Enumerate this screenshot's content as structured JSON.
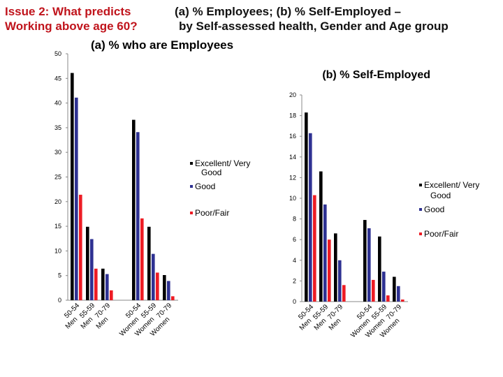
{
  "header": {
    "left_line1": "Issue 2: What predicts",
    "left_line2": "Working above age 60?",
    "right_line1": "(a) % Employees;   (b) % Self-Employed –",
    "right_line2": "by Self-assessed health,  Gender and Age group"
  },
  "colors": {
    "excellent": "#000000",
    "good": "#2e3192",
    "poor": "#ed1c24",
    "title_red": "#c0141c"
  },
  "chart_data": [
    {
      "type": "bar",
      "title": "(a)  % who are Employees",
      "categories": [
        "Men 50-54",
        "Men 55-59",
        "Men 70-79",
        "Women 50-54",
        "Women 55-59",
        "Women 70-79"
      ],
      "category_groups": [
        {
          "line1": "Men",
          "line2": "50-54"
        },
        {
          "line1": "Men",
          "line2": "55-59"
        },
        {
          "line1": "Men",
          "line2": "70-79"
        },
        {
          "line1": "Women",
          "line2": "50-54"
        },
        {
          "line1": "Women",
          "line2": "55-59"
        },
        {
          "line1": "Women",
          "line2": "70-79"
        }
      ],
      "series": [
        {
          "name": "Excellent/ Very Good",
          "values": [
            46.1,
            14.9,
            6.4,
            36.6,
            14.9,
            5.1
          ]
        },
        {
          "name": "Good",
          "values": [
            41.1,
            12.4,
            5.3,
            34.1,
            9.4,
            3.9
          ]
        },
        {
          "name": "Poor/Fair",
          "values": [
            21.4,
            6.4,
            2.0,
            16.6,
            5.6,
            0.8
          ]
        }
      ],
      "legend": [
        "Excellent/ Very",
        "Good",
        "Good",
        "Poor/Fair"
      ],
      "yticks": [
        "0",
        "5",
        "10",
        "15",
        "20",
        "25",
        "30",
        "35",
        "40",
        "45",
        "50"
      ],
      "ylim": [
        0,
        50
      ]
    },
    {
      "type": "bar",
      "title": "(b) %  Self-Employed",
      "categories": [
        "Men 50-54",
        "Men 55-59",
        "Men 70-79",
        "Women 50-54",
        "Women 55-59",
        "Women 70-79"
      ],
      "category_groups": [
        {
          "line1": "Men",
          "line2": "50-54"
        },
        {
          "line1": "Men",
          "line2": "55-59"
        },
        {
          "line1": "Men",
          "line2": "70-79"
        },
        {
          "line1": "Women",
          "line2": "50-54"
        },
        {
          "line1": "Women",
          "line2": "55-59"
        },
        {
          "line1": "Women",
          "line2": "70-79"
        }
      ],
      "series": [
        {
          "name": "Excellent/ Very Good",
          "values": [
            18.3,
            12.6,
            6.6,
            7.9,
            6.3,
            2.4
          ]
        },
        {
          "name": "Good",
          "values": [
            16.3,
            9.4,
            4.0,
            7.1,
            2.9,
            1.5
          ]
        },
        {
          "name": "Poor/Fair",
          "values": [
            10.3,
            6.0,
            1.6,
            2.1,
            0.6,
            0.2
          ]
        }
      ],
      "legend": [
        "Excellent/ Very",
        "Good",
        "Good",
        "Poor/Fair"
      ],
      "yticks": [
        "0",
        "2",
        "4",
        "6",
        "8",
        "10",
        "12",
        "14",
        "16",
        "18",
        "20"
      ],
      "ylim": [
        0,
        20
      ]
    }
  ]
}
